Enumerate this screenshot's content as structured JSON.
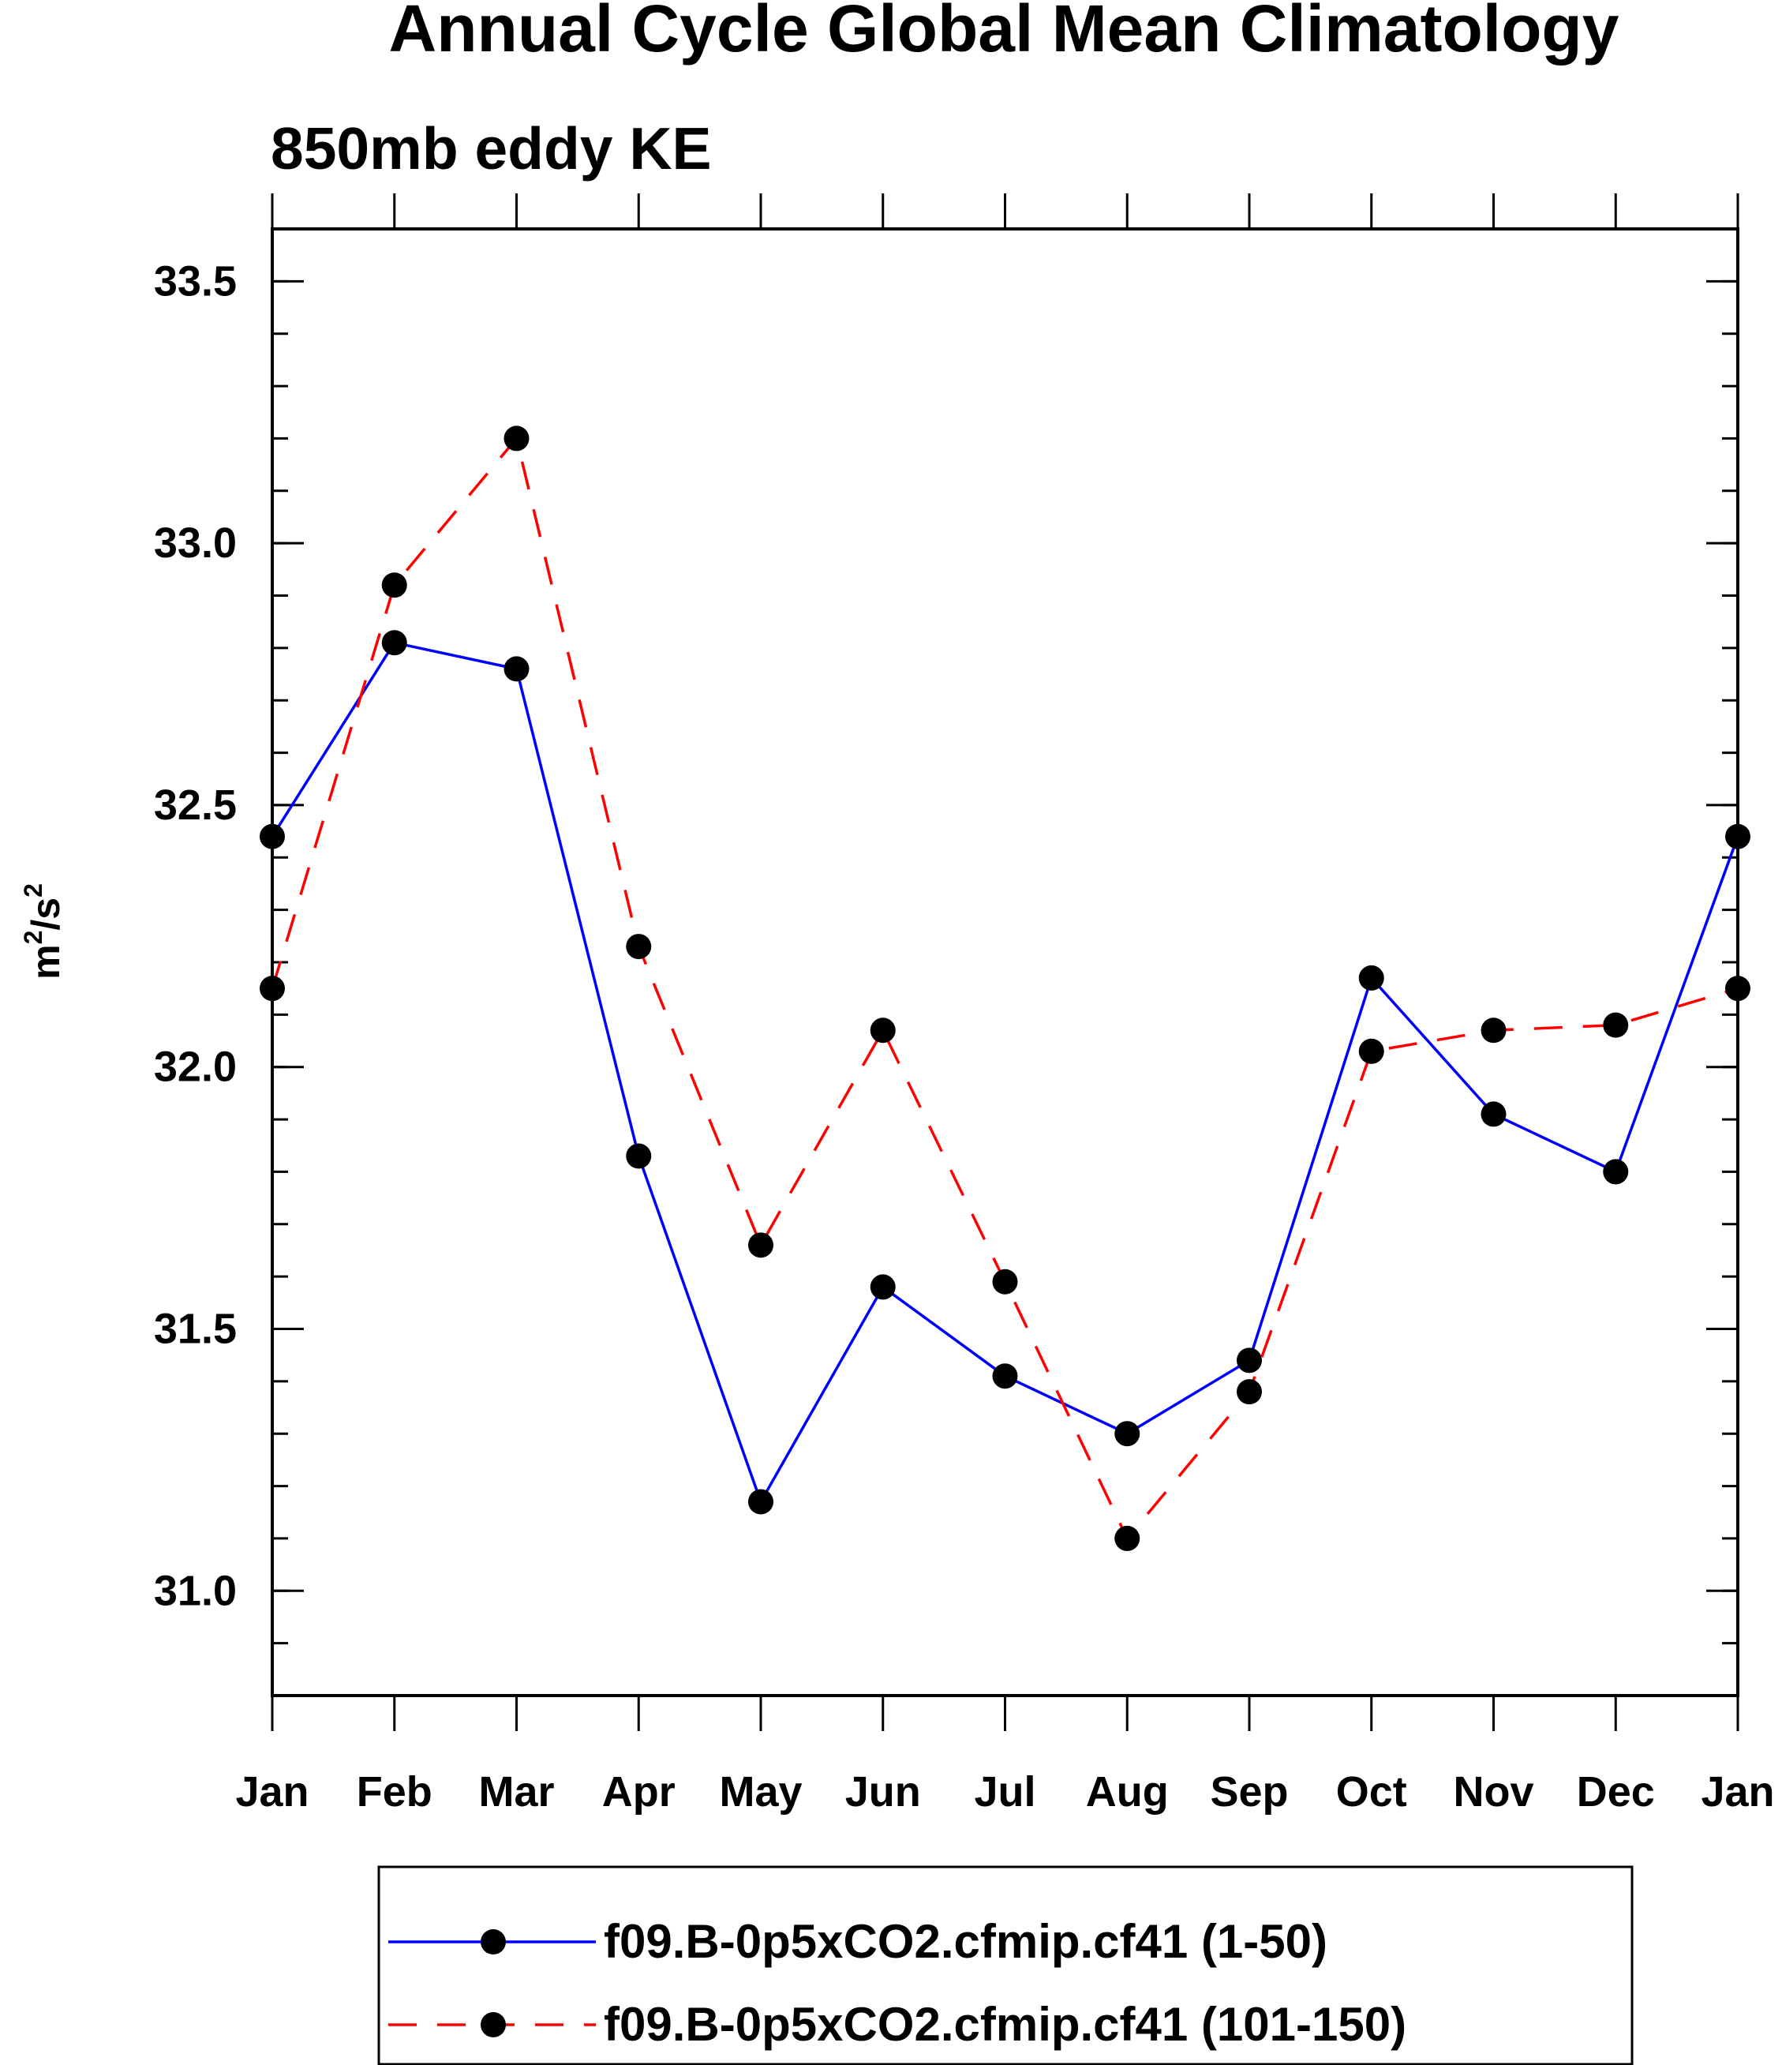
{
  "chart_data": {
    "type": "line",
    "title": "Annual Cycle Global Mean Climatology",
    "subtitle": "850mb eddy KE",
    "ylabel_base": "m",
    "ylabel_exp1": "2",
    "ylabel_mid": "/s",
    "ylabel_exp2": "2",
    "xlabel": "",
    "categories": [
      "Jan",
      "Feb",
      "Mar",
      "Apr",
      "May",
      "Jun",
      "Jul",
      "Aug",
      "Sep",
      "Oct",
      "Nov",
      "Dec",
      "Jan"
    ],
    "ylim": [
      30.8,
      33.6
    ],
    "yticks": [
      31.0,
      31.5,
      32.0,
      32.5,
      33.0,
      33.5
    ],
    "ytick_labels": [
      "31.0",
      "31.5",
      "32.0",
      "32.5",
      "33.0",
      "33.5"
    ],
    "y_minor_step": 0.1,
    "grid": false,
    "legend_position": "bottom",
    "series": [
      {
        "name": "f09.B-0p5xCO2.cfmip.cf41 (1-50)",
        "color": "#0000ff",
        "dash": "solid",
        "marker_color": "#000000",
        "values": [
          32.44,
          32.81,
          32.76,
          31.83,
          31.17,
          31.58,
          31.41,
          31.3,
          31.44,
          32.17,
          31.91,
          31.8,
          32.44
        ]
      },
      {
        "name": "f09.B-0p5xCO2.cfmip.cf41 (101-150)",
        "color": "#ff0000",
        "dash": "dashed",
        "marker_color": "#000000",
        "values": [
          32.15,
          32.92,
          33.2,
          32.23,
          31.66,
          32.07,
          31.59,
          31.1,
          31.38,
          32.03,
          32.07,
          32.08,
          32.15
        ]
      }
    ]
  }
}
